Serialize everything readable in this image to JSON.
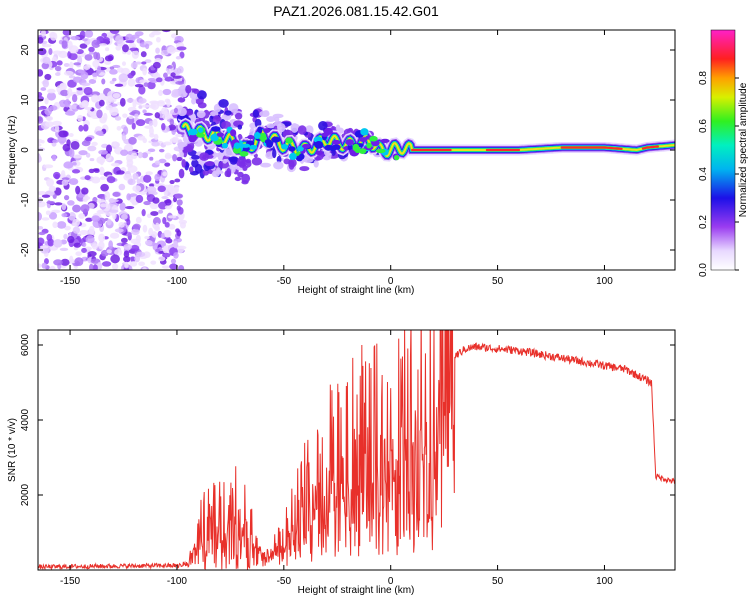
{
  "title": "PAZ1.2026.081.15.42.G01",
  "chart_data": [
    {
      "type": "heatmap",
      "title": "PAZ1.2026.081.15.42.G01",
      "xlabel": "Height of straight line (km)",
      "ylabel": "Frequency (Hz)",
      "xlim": [
        -165,
        133
      ],
      "ylim": [
        -24,
        24
      ],
      "xticks": [
        -150,
        -100,
        -50,
        0,
        50,
        100
      ],
      "yticks": [
        -20,
        -10,
        0,
        10,
        20
      ],
      "ridge": {
        "x": [
          -95,
          -85,
          -75,
          -68,
          -60,
          -50,
          -40,
          -30,
          -20,
          -10,
          -5,
          0,
          5,
          10,
          20,
          40,
          60,
          80,
          100,
          115,
          120,
          133
        ],
        "freq": [
          4,
          3,
          2,
          0,
          3,
          1,
          0,
          2,
          1,
          2,
          0,
          0,
          0.5,
          0,
          0,
          0,
          0,
          0.5,
          0.5,
          0,
          0.5,
          1
        ]
      },
      "colorbar": {
        "label": "Normalized spectral amplitude",
        "range": [
          0,
          1
        ],
        "ticks": [
          "0.0",
          "0.2",
          "0.4",
          "0.6",
          "0.8"
        ]
      }
    },
    {
      "type": "line",
      "xlabel": "Height of straight line (km)",
      "ylabel": "SNR (10 * v/v)",
      "xlim": [
        -165,
        133
      ],
      "ylim": [
        0,
        6400
      ],
      "xticks": [
        -150,
        -100,
        -50,
        0,
        50,
        100
      ],
      "yticks": [
        2000,
        4000,
        6000
      ],
      "series": [
        {
          "name": "SNR",
          "color": "#e8302a",
          "x": [
            -165,
            -140,
            -120,
            -100,
            -95,
            -90,
            -85,
            -80,
            -75,
            -70,
            -65,
            -60,
            -55,
            -50,
            -45,
            -40,
            -35,
            -30,
            -25,
            -20,
            -15,
            -10,
            -5,
            0,
            5,
            10,
            15,
            20,
            25,
            30,
            35,
            40,
            50,
            60,
            70,
            80,
            90,
            100,
            110,
            115,
            120,
            122,
            124,
            130,
            133
          ],
          "y": [
            80,
            100,
            110,
            120,
            200,
            1000,
            1200,
            1300,
            1400,
            1600,
            1200,
            300,
            500,
            800,
            1500,
            2000,
            2400,
            2800,
            3000,
            3200,
            3400,
            3600,
            3400,
            3700,
            3800,
            4000,
            4400,
            5000,
            5400,
            5700,
            5900,
            5950,
            5900,
            5850,
            5750,
            5650,
            5550,
            5450,
            5350,
            5200,
            5050,
            5000,
            2500,
            2400,
            2350
          ]
        }
      ]
    }
  ]
}
